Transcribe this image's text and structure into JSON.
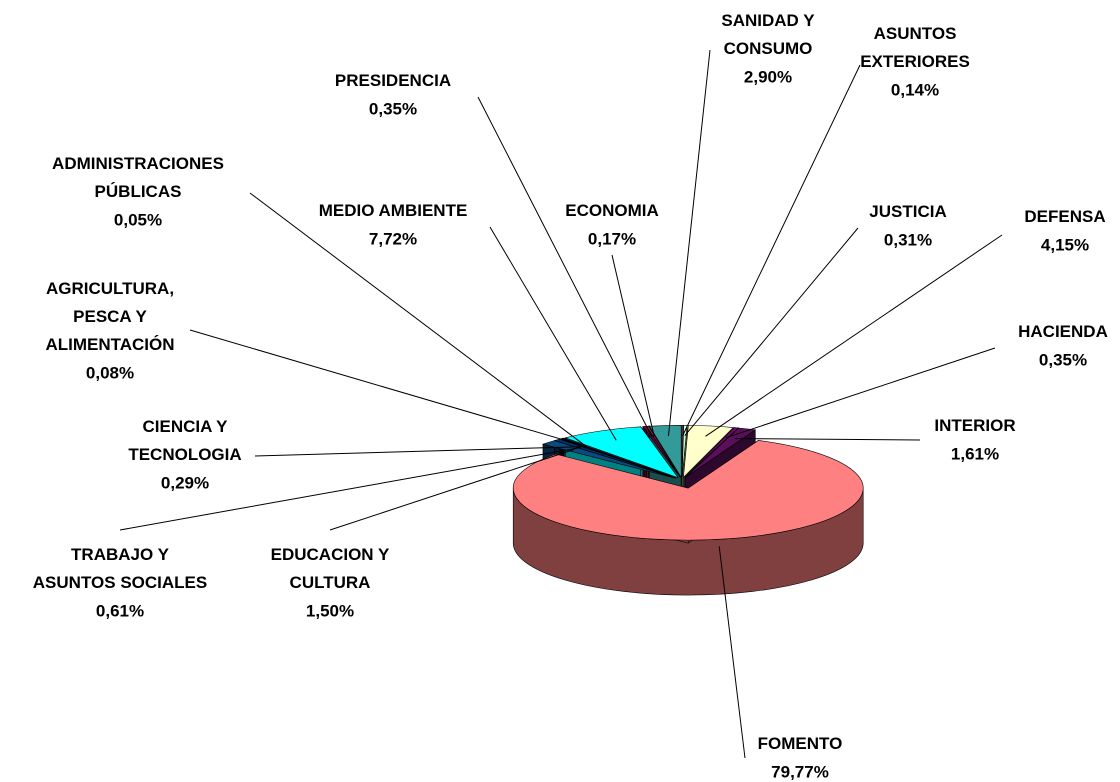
{
  "chart_data": {
    "type": "pie3d",
    "categories": [
      "ASUNTOS\nEXTERIORES",
      "JUSTICIA",
      "DEFENSA",
      "HACIENDA",
      "INTERIOR",
      "FOMENTO",
      "EDUCACION Y\nCULTURA",
      "TRABAJO Y\nASUNTOS SOCIALES",
      "CIENCIA Y\nTECNOLOGIA",
      "AGRICULTURA,\nPESCA Y\nALIMENTACIÓN",
      "ADMINISTRACIONES\nPÚBLICAS",
      "MEDIO AMBIENTE",
      "PRESIDENCIA",
      "ECONOMIA",
      "SANIDAD Y\nCONSUMO"
    ],
    "values": [
      0.14,
      0.31,
      4.15,
      0.35,
      1.61,
      79.77,
      1.5,
      0.61,
      0.29,
      0.08,
      0.05,
      7.72,
      0.35,
      0.17,
      2.9
    ],
    "value_labels": [
      "0,14%",
      "0,31%",
      "4,15%",
      "0,35%",
      "1,61%",
      "79,77%",
      "1,50%",
      "0,61%",
      "0,29%",
      "0,08%",
      "0,05%",
      "7,72%",
      "0,35%",
      "0,17%",
      "2,90%"
    ],
    "colors": [
      "#993366",
      "#ccffcc",
      "#ffffcc",
      "#800080",
      "#5a0f5a",
      "#ff8080",
      "#0a4a80",
      "#003366",
      "#000033",
      "#336699",
      "#1f3f66",
      "#00ffff",
      "#660033",
      "#993366",
      "#339999"
    ]
  }
}
